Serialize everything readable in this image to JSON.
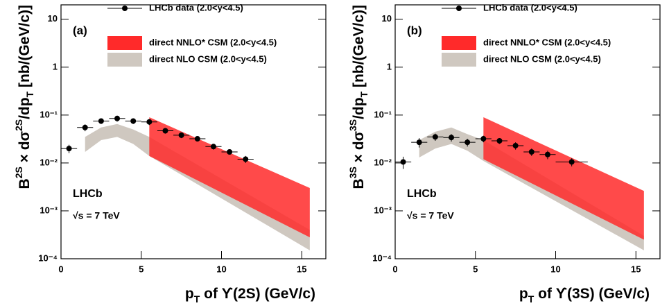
{
  "chart_data": [
    {
      "type": "scatter",
      "panel_label": "(a)",
      "experiment": "LHCb",
      "energy": "√s = 7 TeV",
      "xlabel": [
        "p",
        "T",
        " of ϒ(2S) (GeV/c)"
      ],
      "ylabel": [
        "B",
        "2S",
        " × dσ",
        "2S",
        "/dp",
        "T",
        " [nb/(GeV/c)]"
      ],
      "log_y": true,
      "xlim": [
        0,
        16.5
      ],
      "ylim": [
        0.0001,
        20
      ],
      "xticks": [
        0,
        5,
        10,
        15
      ],
      "yticks": [
        {
          "value": 0.0001,
          "label": "10⁻⁴"
        },
        {
          "value": 0.001,
          "label": "10⁻³"
        },
        {
          "value": 0.01,
          "label": "10⁻²"
        },
        {
          "value": 0.1,
          "label": "10⁻¹"
        },
        1,
        10
      ],
      "series": [
        {
          "name": "LHCb data (2.0<y<4.5)",
          "color": "#000000",
          "x": [
            0.5,
            1.5,
            2.5,
            3.5,
            4.5,
            5.5,
            6.5,
            7.5,
            8.5,
            9.5,
            10.5,
            11.5
          ],
          "xerr": [
            0.5,
            0.5,
            0.5,
            0.5,
            0.5,
            0.5,
            0.5,
            0.5,
            0.5,
            0.5,
            0.5,
            0.5
          ],
          "values": [
            0.02,
            0.055,
            0.075,
            0.085,
            0.075,
            0.072,
            0.047,
            0.038,
            0.032,
            0.022,
            0.017,
            0.012
          ],
          "yerr": [
            0.004,
            0.009,
            0.01,
            0.012,
            0.01,
            0.01,
            0.006,
            0.005,
            0.004,
            0.003,
            0.002,
            0.002
          ]
        }
      ],
      "bands": [
        {
          "name": "direct NLO CSM (2.0<y<4.5)",
          "color": "#cfc8c0",
          "x": [
            1.5,
            2.5,
            3.5,
            4.5,
            5.5,
            15.5
          ],
          "upper": [
            0.035,
            0.055,
            0.065,
            0.05,
            0.035,
            0.0004
          ],
          "lower": [
            0.017,
            0.03,
            0.035,
            0.025,
            0.014,
            0.00015
          ]
        },
        {
          "name": "direct NNLO* CSM (2.0<y<4.5)",
          "color": "#ff2a2a",
          "x": [
            5.5,
            15.5
          ],
          "upper": [
            0.09,
            0.003
          ],
          "lower": [
            0.014,
            0.00028
          ]
        }
      ]
    },
    {
      "type": "scatter",
      "panel_label": "(b)",
      "experiment": "LHCb",
      "energy": "√s = 7 TeV",
      "xlabel": [
        "p",
        "T",
        " of ϒ(3S) (GeV/c)"
      ],
      "ylabel": [
        "B",
        "3S",
        " × dσ",
        "3S",
        "/dp",
        "T",
        " [nb/(GeV/c)]"
      ],
      "log_y": true,
      "xlim": [
        0,
        16.5
      ],
      "ylim": [
        0.0001,
        20
      ],
      "xticks": [
        0,
        5,
        10,
        15
      ],
      "yticks": [
        {
          "value": 0.0001,
          "label": "10⁻⁴"
        },
        {
          "value": 0.001,
          "label": "10⁻³"
        },
        {
          "value": 0.01,
          "label": "10⁻²"
        },
        {
          "value": 0.1,
          "label": "10⁻¹"
        },
        1,
        10
      ],
      "series": [
        {
          "name": "LHCb data (2.0<y<4.5)",
          "color": "#000000",
          "x": [
            0.5,
            1.5,
            2.5,
            3.5,
            4.5,
            5.5,
            6.5,
            7.5,
            8.5,
            9.5,
            11
          ],
          "xerr": [
            0.5,
            0.5,
            0.5,
            0.5,
            0.5,
            0.5,
            0.5,
            0.5,
            0.5,
            0.5,
            1
          ],
          "values": [
            0.0105,
            0.027,
            0.035,
            0.034,
            0.027,
            0.032,
            0.029,
            0.023,
            0.017,
            0.015,
            0.0105
          ],
          "yerr": [
            0.003,
            0.006,
            0.006,
            0.006,
            0.005,
            0.005,
            0.004,
            0.004,
            0.003,
            0.003,
            0.002
          ]
        }
      ],
      "bands": [
        {
          "name": "direct NLO CSM (2.0<y<4.5)",
          "color": "#cfc8c0",
          "x": [
            1.5,
            2.5,
            3.5,
            4.5,
            5.5,
            15.5
          ],
          "upper": [
            0.03,
            0.045,
            0.055,
            0.04,
            0.03,
            0.0003
          ],
          "lower": [
            0.013,
            0.02,
            0.025,
            0.018,
            0.011,
            0.00015
          ]
        },
        {
          "name": "direct NNLO* CSM (2.0<y<4.5)",
          "color": "#ff2a2a",
          "x": [
            5.5,
            15.5
          ],
          "upper": [
            0.09,
            0.0026
          ],
          "lower": [
            0.012,
            0.00025
          ]
        }
      ]
    }
  ]
}
